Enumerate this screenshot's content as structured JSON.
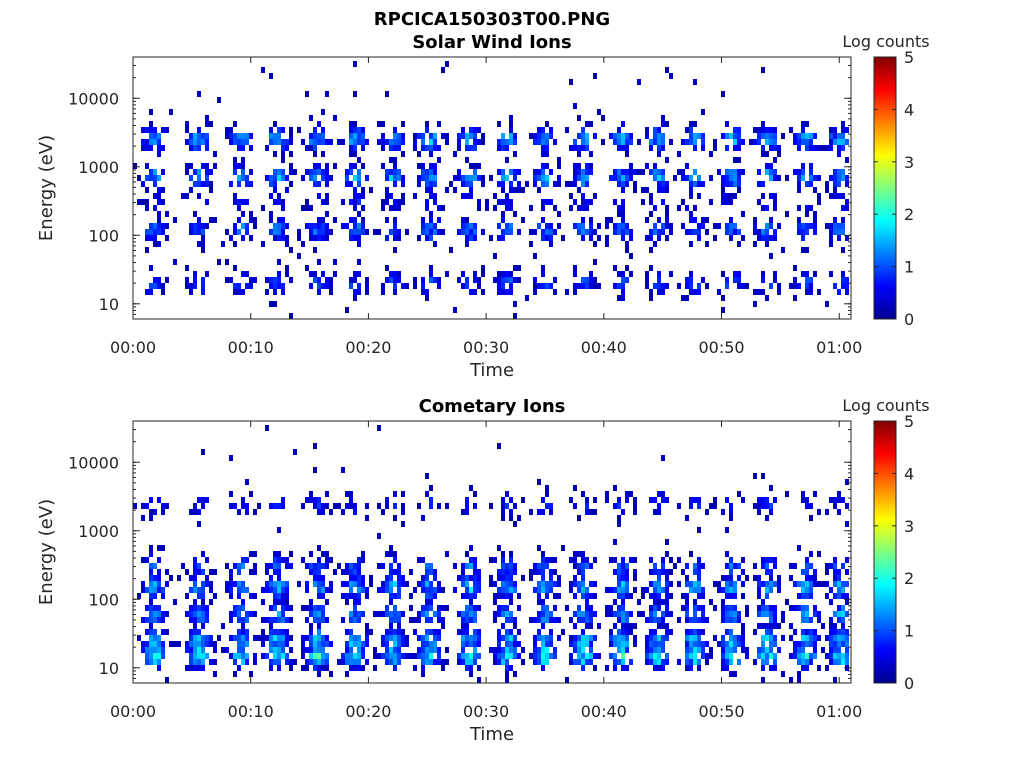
{
  "figure": {
    "title": "RPCICA150303T00.PNG"
  },
  "colormap": {
    "name": "jet",
    "stops": [
      "#00008f",
      "#0000ff",
      "#0080ff",
      "#00ffff",
      "#80ff80",
      "#ffff00",
      "#ff8000",
      "#ff0000",
      "#800000"
    ]
  },
  "chart_data": [
    {
      "type": "heatmap",
      "title": "Solar Wind Ions",
      "xlabel": "Time",
      "ylabel": "Energy (eV)",
      "y_scale": "log",
      "ylim": [
        6,
        40000
      ],
      "xlim": [
        "00:00",
        "01:01"
      ],
      "x_ticks": [
        "00:00",
        "00:10",
        "00:20",
        "00:30",
        "00:40",
        "00:50",
        "01:00"
      ],
      "y_ticks": [
        {
          "value": 10,
          "label": "10"
        },
        {
          "value": 100,
          "label": "100"
        },
        {
          "value": 1000,
          "label": "1000"
        },
        {
          "value": 10000,
          "label": "10000"
        }
      ],
      "colorbar": {
        "label": "Log counts",
        "min": 0,
        "max": 5,
        "ticks": [
          "0",
          "1",
          "2",
          "3",
          "4",
          "5"
        ]
      },
      "sweep_centers_min": [
        1.8,
        5.6,
        9.2,
        12.3,
        15.7,
        18.9,
        22.1,
        25.2,
        28.6,
        31.8,
        35.0,
        38.3,
        41.5,
        44.6,
        47.7,
        50.9,
        53.9,
        57.2,
        60.1
      ],
      "bands": [
        {
          "energy_ev": 20,
          "level": 0.9
        },
        {
          "energy_ev": 120,
          "level": 1.1
        },
        {
          "energy_ev": 300,
          "level": 0.6
        },
        {
          "energy_ev": 700,
          "level": 1.3
        },
        {
          "energy_ev": 2500,
          "level": 1.4
        }
      ]
    },
    {
      "type": "heatmap",
      "title": "Cometary Ions",
      "xlabel": "Time",
      "ylabel": "Energy (eV)",
      "y_scale": "log",
      "ylim": [
        6,
        40000
      ],
      "xlim": [
        "00:00",
        "01:01"
      ],
      "x_ticks": [
        "00:00",
        "00:10",
        "00:20",
        "00:30",
        "00:40",
        "00:50",
        "01:00"
      ],
      "y_ticks": [
        {
          "value": 10,
          "label": "10"
        },
        {
          "value": 100,
          "label": "100"
        },
        {
          "value": 1000,
          "label": "1000"
        },
        {
          "value": 10000,
          "label": "10000"
        }
      ],
      "colorbar": {
        "label": "Log counts",
        "min": 0,
        "max": 5,
        "ticks": [
          "0",
          "1",
          "2",
          "3",
          "4",
          "5"
        ]
      },
      "sweep_centers_min": [
        1.8,
        5.6,
        9.2,
        12.3,
        15.7,
        18.9,
        22.1,
        25.2,
        28.6,
        31.8,
        35.0,
        38.3,
        41.5,
        44.6,
        47.7,
        50.9,
        53.9,
        57.2,
        60.1
      ],
      "bands": [
        {
          "energy_ev": 15,
          "level": 1.8
        },
        {
          "energy_ev": 25,
          "level": 1.5
        },
        {
          "energy_ev": 60,
          "level": 1.3
        },
        {
          "energy_ev": 150,
          "level": 1.4
        },
        {
          "energy_ev": 300,
          "level": 1.0
        },
        {
          "energy_ev": 2400,
          "level": 0.7
        }
      ]
    }
  ]
}
